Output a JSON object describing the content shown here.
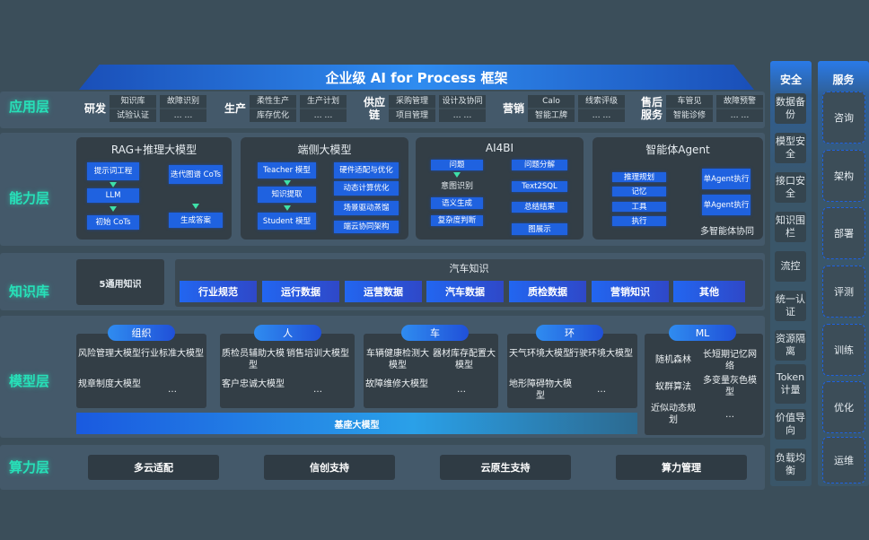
{
  "title": "企业级 AI for Process 框架",
  "layers": {
    "app": "应用层",
    "ability": "能力层",
    "knowledge": "知识库",
    "model": "模型层",
    "compute": "算力层"
  },
  "app_groups": [
    {
      "label": "研发",
      "cells": [
        "知识库",
        "试验认证",
        "故障识别",
        "… …"
      ]
    },
    {
      "label": "生产",
      "cells": [
        "柔性生产",
        "库存优化",
        "生产计划",
        "… …"
      ]
    },
    {
      "label": "供应链",
      "cells": [
        "采购管理",
        "项目管理",
        "设计及协同",
        "… …"
      ]
    },
    {
      "label": "营销",
      "cells": [
        "Calo",
        "智能工牌",
        "线索评级",
        "… …"
      ]
    },
    {
      "label": "售后服务",
      "cells": [
        "车管见",
        "智能诊修",
        "故障预警",
        "… …"
      ]
    }
  ],
  "ability": {
    "rag": {
      "title": "RAG+推理大模型",
      "items": [
        "提示词工程",
        "LLM",
        "初始 CoTs",
        "迭代图谱 CoTs",
        "生成答案"
      ]
    },
    "edge": {
      "title": "端侧大模型",
      "items": [
        "Teacher 模型",
        "知识提取",
        "Student 模型",
        "硬件适配与优化",
        "动态计算优化",
        "场景驱动蒸馏",
        "端云协同架构"
      ]
    },
    "ai4bi": {
      "title": "AI4BI",
      "items": [
        "问题",
        "意图识别",
        "语义生成",
        "复杂度判断",
        "问题分解",
        "Text2SQL",
        "总结结果",
        "图展示"
      ]
    },
    "agent": {
      "title": "智能体Agent",
      "items": [
        "推理规划",
        "记忆",
        "工具",
        "执行",
        "单Agent执行",
        "单Agent执行"
      ],
      "footer": "多智能体协同"
    }
  },
  "knowledge": {
    "general": "5通用知识",
    "car_title": "汽车知识",
    "car_items": [
      "行业规范",
      "运行数据",
      "运营数据",
      "汽车数据",
      "质检数据",
      "营销知识",
      "其他"
    ]
  },
  "models": [
    {
      "label": "组织",
      "items": [
        "风险管理大模型",
        "行业标准大模型",
        "规章制度大模型",
        "…"
      ]
    },
    {
      "label": "人",
      "items": [
        "质检员辅助大模型",
        "销售培训大模型",
        "客户忠诚大模型",
        "…"
      ]
    },
    {
      "label": "车",
      "items": [
        "车辆健康检测大模型",
        "器材库存配置大模型",
        "故障维修大模型",
        "…"
      ]
    },
    {
      "label": "环",
      "items": [
        "天气环境大模型",
        "行驶环境大模型",
        "地形障碍物大模型",
        "…"
      ]
    },
    {
      "label": "ML",
      "items": [
        "随机森林",
        "长短期记忆网络",
        "蚁群算法",
        "多变量灰色模型",
        "近似动态规划",
        "…"
      ]
    }
  ],
  "base_model": "基座大模型",
  "compute": [
    "多云适配",
    "信创支持",
    "云原生支持",
    "算力管理"
  ],
  "security": {
    "title": "安全",
    "items": [
      "数据备份",
      "模型安全",
      "接口安全",
      "知识围栏",
      "流控",
      "统一认证",
      "资源隔离",
      "Token计量",
      "价值导向",
      "负载均衡"
    ]
  },
  "service": {
    "title": "服务",
    "items": [
      "咨询",
      "架构",
      "部署",
      "评测",
      "训练",
      "优化",
      "运维"
    ]
  },
  "colors": {
    "accent": "#1f62e0",
    "layer_label": "#27e0b8",
    "background": "#3b4e5a"
  }
}
